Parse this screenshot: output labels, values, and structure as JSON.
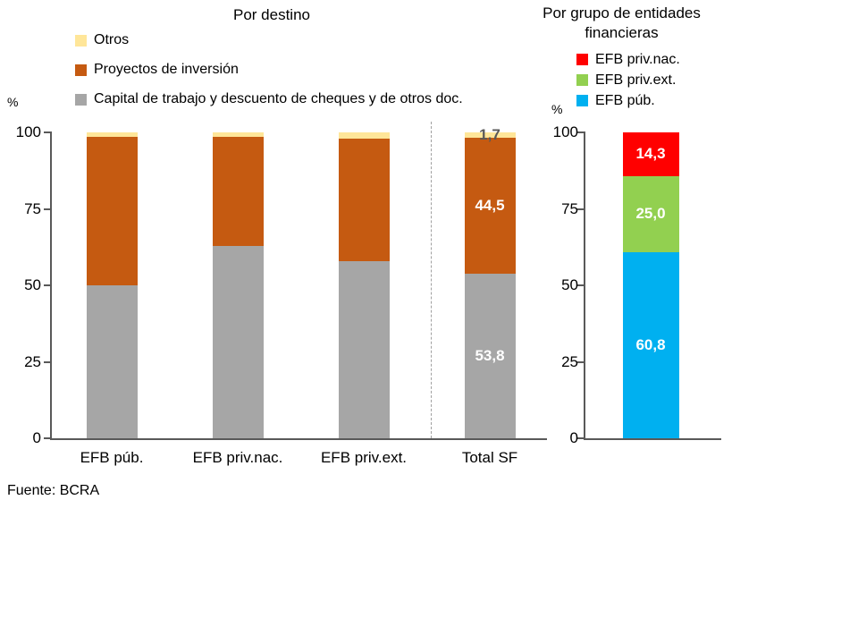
{
  "page": {
    "background": "#FFFFFF",
    "source_note": "Fuente: BCRA"
  },
  "chart_data": [
    {
      "type": "bar",
      "stacked": true,
      "orientation": "vertical",
      "title": "Por destino",
      "ylabel": "%",
      "ylim": [
        0,
        100
      ],
      "yticks": [
        100,
        75,
        50,
        25,
        0
      ],
      "grid": false,
      "legend_position": "top-left",
      "categories": [
        "EFB púb.",
        "EFB priv.nac.",
        "EFB priv.ext.",
        "Total SF"
      ],
      "series": [
        {
          "name": "Capital de trabajo y descuento de cheques y de otros doc.",
          "color": "#A6A6A6",
          "values": [
            50.0,
            63.0,
            58.0,
            53.8
          ]
        },
        {
          "name": "Proyectos de inversión",
          "color": "#C55A11",
          "values": [
            48.5,
            35.5,
            40.0,
            44.5
          ]
        },
        {
          "name": "Otros",
          "color": "#FFE699",
          "values": [
            1.5,
            1.5,
            2.0,
            1.7
          ]
        }
      ],
      "data_labels": {
        "category_index": 3,
        "labels": [
          {
            "text": "53,8",
            "color": "#FFFFFF"
          },
          {
            "text": "44,5",
            "color": "#FFFFFF"
          },
          {
            "text": "1,7",
            "color": "#595959"
          }
        ]
      },
      "separator_after_category_index": 2
    },
    {
      "type": "bar",
      "stacked": true,
      "orientation": "vertical",
      "title": "Por grupo de entidades financieras",
      "ylabel": "%",
      "ylim": [
        0,
        100
      ],
      "yticks": [
        100,
        75,
        50,
        25,
        0
      ],
      "grid": false,
      "legend_position": "top-right",
      "categories": [
        ""
      ],
      "series": [
        {
          "name": "EFB púb.",
          "color": "#00B0F0",
          "values": [
            60.8
          ]
        },
        {
          "name": "EFB priv.ext.",
          "color": "#92D050",
          "values": [
            25.0
          ]
        },
        {
          "name": "EFB priv.nac.",
          "color": "#FF0000",
          "values": [
            14.3
          ]
        }
      ],
      "data_labels": {
        "category_index": 0,
        "labels": [
          {
            "text": "60,8",
            "color": "#FFFFFF"
          },
          {
            "text": "25,0",
            "color": "#FFFFFF"
          },
          {
            "text": "14,3",
            "color": "#FFFFFF"
          }
        ]
      }
    }
  ]
}
